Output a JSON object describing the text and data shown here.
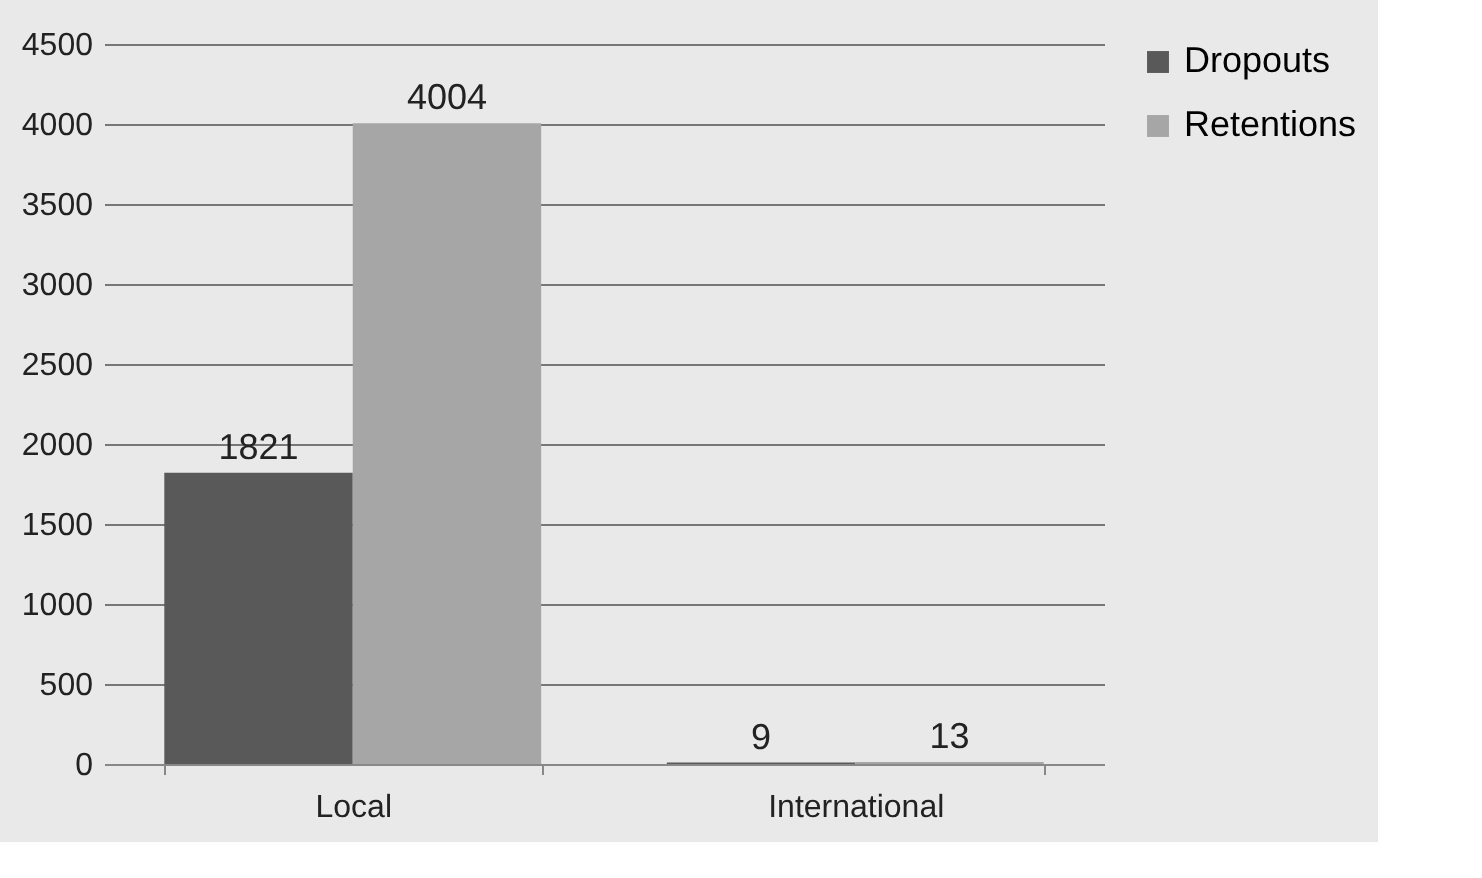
{
  "chart_data": {
    "type": "bar",
    "categories": [
      "Local",
      "International"
    ],
    "series": [
      {
        "name": "Dropouts",
        "color": "#595959",
        "values": [
          1821,
          9
        ]
      },
      {
        "name": "Retentions",
        "color": "#a6a6a6",
        "values": [
          4004,
          13
        ]
      }
    ],
    "ylim": [
      0,
      4500
    ],
    "yticks": [
      0,
      500,
      1000,
      1500,
      2000,
      2500,
      3000,
      3500,
      4000,
      4500
    ],
    "grid": "y",
    "legend": "right",
    "data_labels": true
  }
}
